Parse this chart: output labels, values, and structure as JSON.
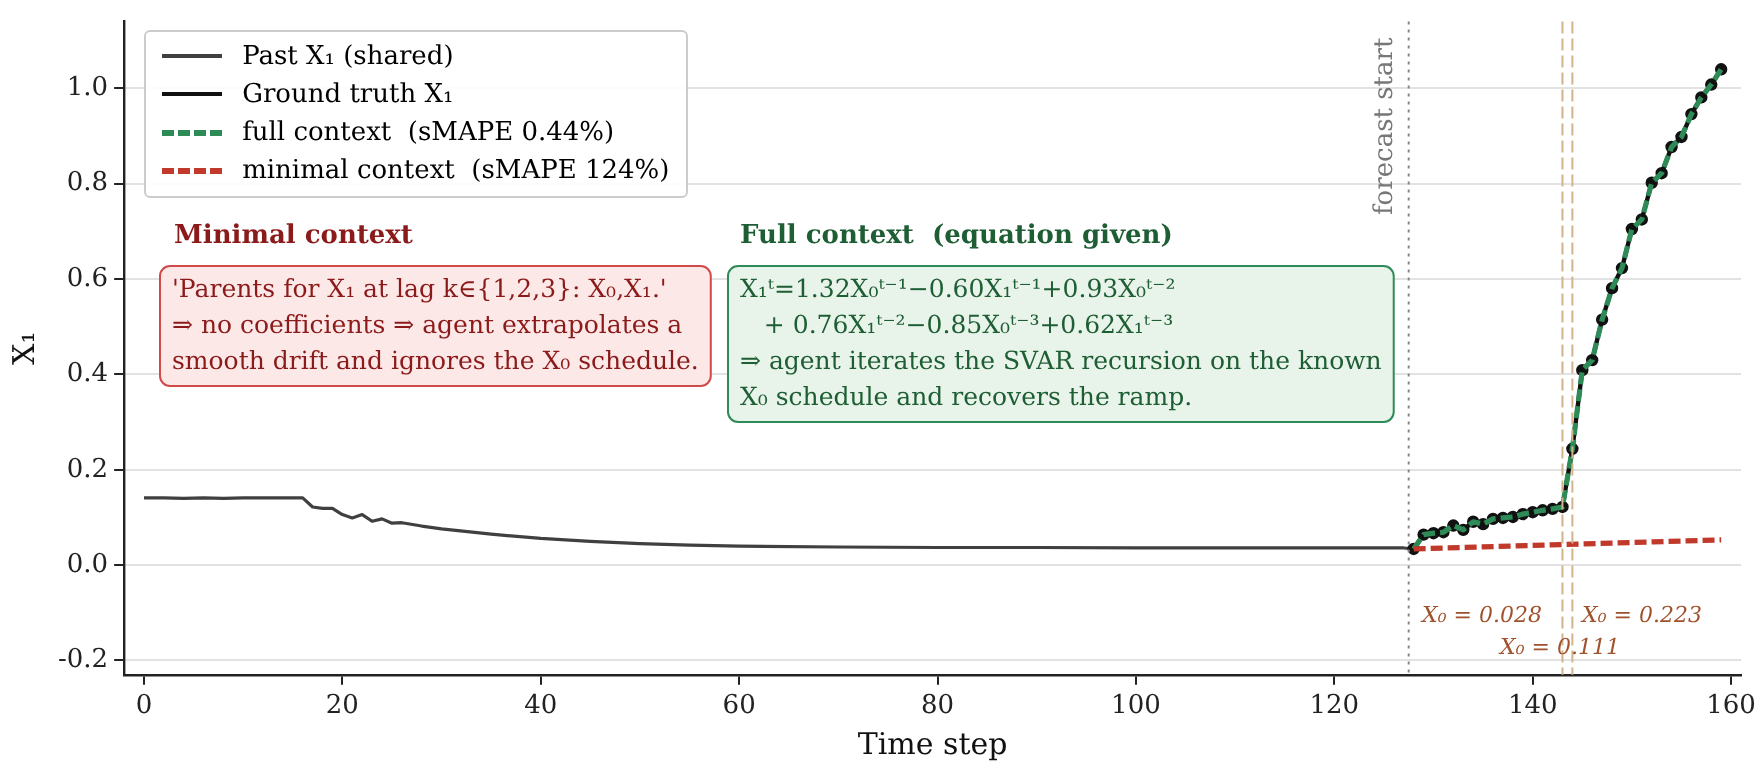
{
  "chart_data": {
    "type": "line",
    "xlabel": "Time step",
    "ylabel": "X₁",
    "xlim": [
      -2,
      161
    ],
    "xticks": [
      0,
      20,
      40,
      60,
      80,
      100,
      120,
      140,
      160
    ],
    "ylim": [
      -0.23,
      1.14
    ],
    "yticks": [
      -0.2,
      {
        "value": 0,
        "label": "0.0"
      },
      0.2,
      0.4,
      0.6,
      0.8,
      {
        "value": 1,
        "label": "1.0"
      }
    ],
    "grid": "y",
    "legend": "top left",
    "series": [
      {
        "name": "Past X₁ (shared)",
        "color": "#404040",
        "line_style": "solid",
        "marker": "none",
        "x": [
          0,
          2,
          4,
          6,
          8,
          10,
          12,
          14,
          16,
          17,
          18,
          19,
          20,
          21,
          22,
          23,
          24,
          25,
          26,
          28,
          30,
          35,
          40,
          45,
          50,
          55,
          60,
          70,
          80,
          90,
          100,
          110,
          120,
          127,
          128
        ],
        "values": [
          0.141,
          0.141,
          0.14,
          0.141,
          0.14,
          0.141,
          0.141,
          0.141,
          0.141,
          0.122,
          0.119,
          0.119,
          0.106,
          0.099,
          0.106,
          0.092,
          0.097,
          0.088,
          0.089,
          0.082,
          0.076,
          0.065,
          0.056,
          0.05,
          0.045,
          0.042,
          0.04,
          0.038,
          0.037,
          0.037,
          0.036,
          0.036,
          0.036,
          0.036,
          0.034
        ]
      },
      {
        "name": "Ground truth X₁",
        "color": "#111111",
        "line_style": "solid",
        "marker": "circle",
        "x": [
          128,
          129,
          130,
          131,
          132,
          133,
          134,
          135,
          136,
          137,
          138,
          139,
          140,
          141,
          142,
          143,
          144,
          145,
          146,
          147,
          148,
          149,
          150,
          151,
          152,
          153,
          154,
          155,
          156,
          157,
          158,
          159
        ],
        "values": [
          0.034,
          0.064,
          0.067,
          0.069,
          0.083,
          0.074,
          0.091,
          0.086,
          0.097,
          0.099,
          0.101,
          0.107,
          0.111,
          0.115,
          0.118,
          0.122,
          0.244,
          0.409,
          0.43,
          0.515,
          0.581,
          0.623,
          0.705,
          0.725,
          0.802,
          0.822,
          0.877,
          0.898,
          0.946,
          0.981,
          1.008,
          1.04
        ]
      },
      {
        "name": "full context  (sMAPE 0.44%)",
        "color": "#2e8b57",
        "line_style": "dashed",
        "marker": "none",
        "x": [
          128,
          129,
          130,
          131,
          132,
          133,
          134,
          135,
          136,
          137,
          138,
          139,
          140,
          141,
          142,
          143,
          144,
          145,
          146,
          147,
          148,
          149,
          150,
          151,
          152,
          153,
          154,
          155,
          156,
          157,
          158,
          159
        ],
        "values": [
          0.034,
          0.064,
          0.067,
          0.069,
          0.083,
          0.074,
          0.091,
          0.086,
          0.097,
          0.099,
          0.101,
          0.107,
          0.111,
          0.115,
          0.118,
          0.122,
          0.244,
          0.409,
          0.43,
          0.515,
          0.581,
          0.623,
          0.705,
          0.725,
          0.802,
          0.822,
          0.877,
          0.898,
          0.946,
          0.981,
          1.008,
          1.04
        ]
      },
      {
        "name": "minimal context  (sMAPE 124%)",
        "color": "#c0392b",
        "line_style": "dashed",
        "marker": "none",
        "x": [
          128,
          159
        ],
        "values": [
          0.034,
          0.053
        ]
      }
    ],
    "ref_lines": [
      {
        "axis": "x",
        "value": 127.5,
        "label": "forecast start",
        "color": "#888888",
        "line_style": "dotted"
      },
      {
        "axis": "x",
        "value": 143,
        "label": null,
        "color": "#d2b48c",
        "line_style": "dashed"
      },
      {
        "axis": "x",
        "value": 144,
        "label": null,
        "color": "#d2b48c",
        "line_style": "dashed"
      }
    ],
    "annotations": [
      "Minimal context",
      "'Parents for X₁ at lag k∈{1,2,3}: X₀,X₁.'\n⇒ no coefficients ⇒ agent extrapolates a\nsmooth drift and ignores the X₀ schedule.",
      "Full context  (equation given)",
      "X₁ᵗ=1.32X₀ᵗ⁻¹−0.60X₁ᵗ⁻¹+0.93X₀ᵗ⁻²\n   + 0.76X₁ᵗ⁻²−0.85X₀ᵗ⁻³+0.62X₁ᵗ⁻³\n⇒ agent iterates the SVAR recursion on the known\nX₀ schedule and recovers the ramp.",
      "X₀ = 0.028",
      "X₀ = 0.111",
      "X₀ = 0.223"
    ]
  }
}
